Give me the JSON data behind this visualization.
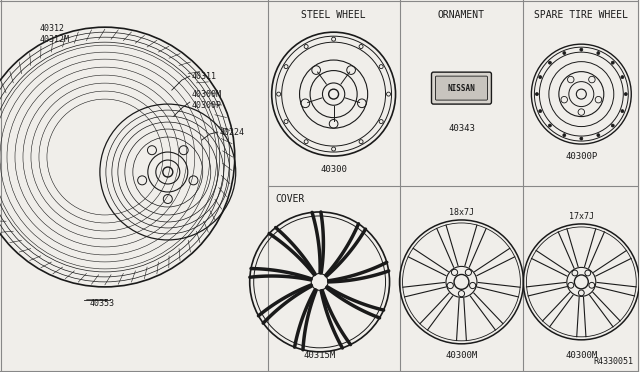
{
  "bg_color": "#f0eeea",
  "line_color": "#1a1a1a",
  "grid_color": "#888888",
  "title_font_size": 7,
  "label_font_size": 6.5,
  "part_num_font_size": 6,
  "diagram_parts": {
    "steel_wheel_label": "STEEL WHEEL",
    "ornament_label": "ORNAMENT",
    "spare_tire_label": "SPARE TIRE WHEEL",
    "cover_label": "COVER",
    "part_40300": "40300",
    "part_40343": "40343",
    "part_40300P": "40300P",
    "part_40315M": "40315M",
    "part_40300M": "40300M",
    "part_40380M": "40300M",
    "size_18x7J": "18x7J",
    "size_17x7J": "17x7J",
    "ref_code": "R4330051"
  }
}
